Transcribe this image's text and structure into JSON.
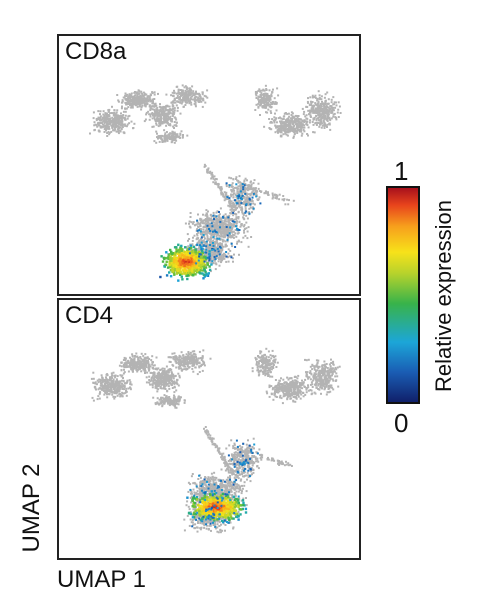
{
  "chart_data": {
    "type": "scatter",
    "xlabel": "UMAP 1",
    "ylabel": "UMAP 2",
    "panels": [
      {
        "title": "CD8a",
        "expressing_region": "lower cluster, peak at bottom-left"
      },
      {
        "title": "CD4",
        "expressing_region": "lower cluster, peak at center"
      }
    ],
    "colorbar": {
      "label": "Relative expression",
      "min_label": "0",
      "max_label": "1",
      "range": [
        0,
        1
      ]
    },
    "background_color": "#b3b3b3",
    "colormap": [
      "#10206a",
      "#1a5db4",
      "#1ca6d8",
      "#38b34a",
      "#b6d22c",
      "#f7e21a",
      "#f7a01c",
      "#e8441c",
      "#a8111c"
    ]
  }
}
